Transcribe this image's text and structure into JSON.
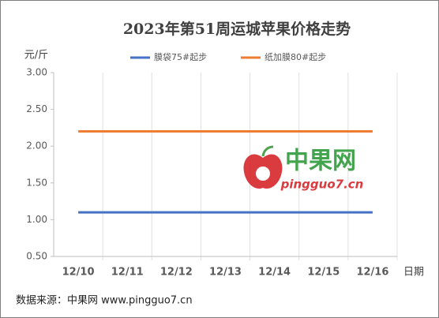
{
  "chart_data": {
    "type": "line",
    "title": "2023年第51周运城苹果价格走势",
    "y_label": "元/斤",
    "x_label": "日期",
    "categories": [
      "12/10",
      "12/11",
      "12/12",
      "12/13",
      "12/14",
      "12/15",
      "12/16"
    ],
    "series": [
      {
        "name": "膜袋75#起步",
        "color": "#4472c4",
        "values": [
          1.1,
          1.1,
          1.1,
          1.1,
          1.1,
          1.1,
          1.1
        ]
      },
      {
        "name": "纸加膜80#起步",
        "color": "#ed7d31",
        "values": [
          2.2,
          2.2,
          2.2,
          2.2,
          2.2,
          2.2,
          2.2
        ]
      }
    ],
    "ylim": [
      0.5,
      3.0
    ],
    "yticks": [
      {
        "value": 0.5,
        "label": "0.50"
      },
      {
        "value": 1.0,
        "label": "1.00"
      },
      {
        "value": 1.5,
        "label": "1.50"
      },
      {
        "value": 2.0,
        "label": "2.00"
      },
      {
        "value": 2.5,
        "label": "2.50"
      },
      {
        "value": 3.0,
        "label": "3.00"
      }
    ],
    "legend": "top",
    "source": "数据来源：中果网 www.pingguo7.cn",
    "watermark": {
      "name": "中果网",
      "url": "pingguo7.cn"
    }
  }
}
